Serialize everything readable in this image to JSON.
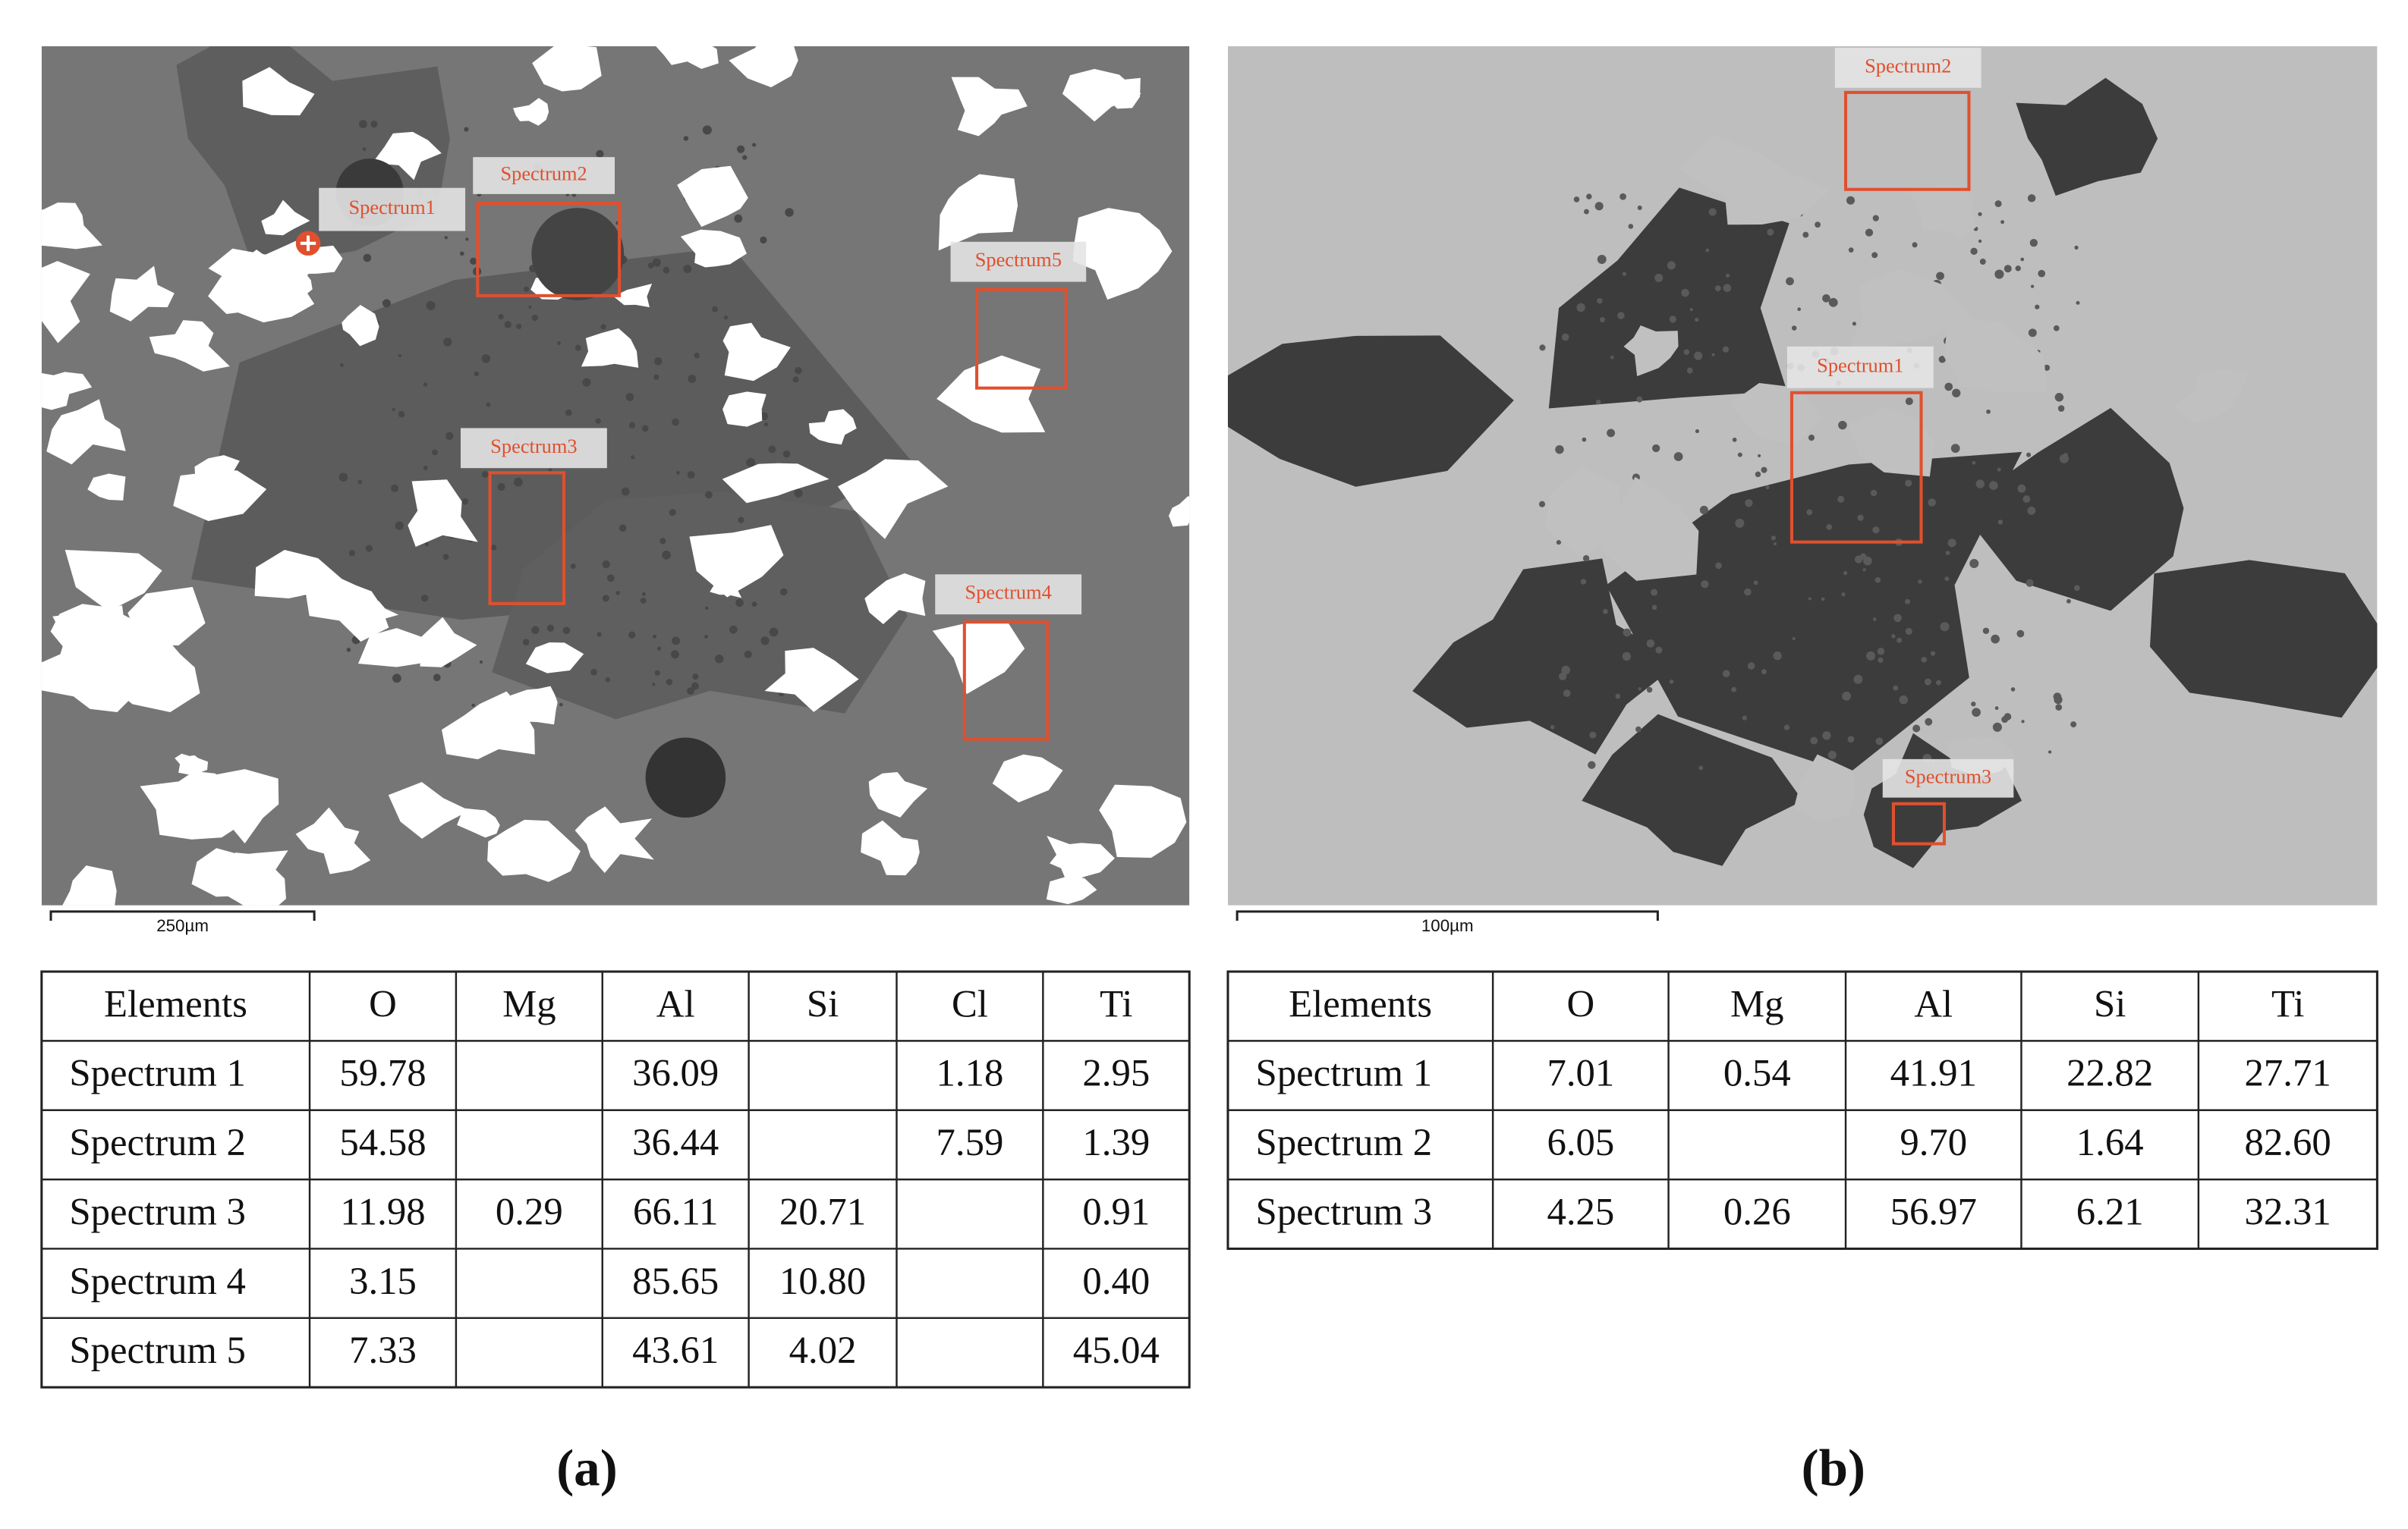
{
  "panels": [
    {
      "caption": "(a)",
      "scale_bar": "250µm",
      "spectrum_labels": [
        "Spectrum1",
        "Spectrum2",
        "Spectrum3",
        "Spectrum4",
        "Spectrum5"
      ],
      "table": {
        "header": [
          "Elements",
          "O",
          "Mg",
          "Al",
          "Si",
          "Cl",
          "Ti"
        ],
        "rows": [
          [
            "Spectrum 1",
            "59.78",
            null,
            "36.09",
            null,
            "1.18",
            "2.95"
          ],
          [
            "Spectrum 2",
            "54.58",
            null,
            "36.44",
            null,
            "7.59",
            "1.39"
          ],
          [
            "Spectrum 3",
            "11.98",
            "0.29",
            "66.11",
            "20.71",
            null,
            "0.91"
          ],
          [
            "Spectrum 4",
            "3.15",
            null,
            "85.65",
            "10.80",
            null,
            "0.40"
          ],
          [
            "Spectrum 5",
            "7.33",
            null,
            "43.61",
            "4.02",
            null,
            "45.04"
          ]
        ]
      }
    },
    {
      "caption": "(b)",
      "scale_bar": "100µm",
      "spectrum_labels": [
        "Spectrum1",
        "Spectrum2",
        "Spectrum3"
      ],
      "table": {
        "header": [
          "Elements",
          "O",
          "Mg",
          "Al",
          "Si",
          "Ti"
        ],
        "rows": [
          [
            "Spectrum 1",
            "7.01",
            "0.54",
            "41.91",
            "22.82",
            "27.71"
          ],
          [
            "Spectrum 2",
            "6.05",
            null,
            "9.70",
            "1.64",
            "82.60"
          ],
          [
            "Spectrum 3",
            "4.25",
            "0.26",
            "56.97",
            "6.21",
            "32.31"
          ]
        ]
      }
    }
  ]
}
